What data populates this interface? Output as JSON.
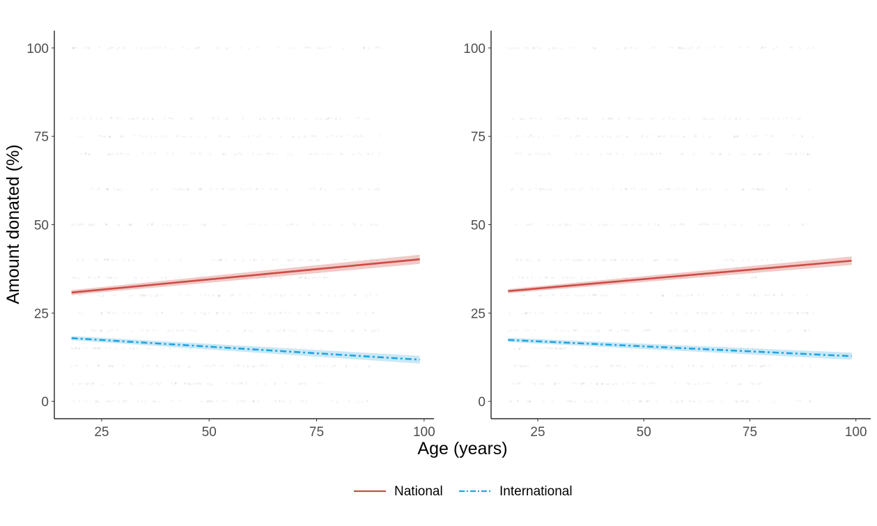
{
  "chart_data": [
    {
      "type": "line",
      "xlabel": "Age (years)",
      "ylabel": "Amount donated (%)",
      "xlim": [
        14,
        102.3
      ],
      "ylim": [
        -4.9,
        104.9
      ],
      "x_ticks": [
        "25",
        "50",
        "75",
        "100"
      ],
      "y_ticks": [
        "0",
        "25",
        "50",
        "75",
        "100"
      ],
      "grid": false,
      "series": [
        {
          "name": "National",
          "color": "#cc4c44",
          "band_color": "#e8a7a3",
          "linetype": "solid",
          "x": [
            18,
            99
          ],
          "y": [
            30.8,
            40.2
          ],
          "ci_halfwidth": [
            0.7,
            1.3
          ]
        },
        {
          "name": "International",
          "color": "#1ea5e0",
          "band_color": "#a6d9f2",
          "linetype": "dashdot",
          "x": [
            18,
            99
          ],
          "y": [
            17.9,
            11.8
          ],
          "ci_halfwidth": [
            0.6,
            1.1
          ]
        }
      ],
      "raw_point_levels": [
        0,
        5,
        10,
        15,
        20,
        25,
        30,
        35,
        40,
        50,
        60,
        70,
        75,
        80,
        100
      ]
    },
    {
      "type": "line",
      "xlabel": "Age (years)",
      "ylabel": "",
      "xlim": [
        14,
        103.5
      ],
      "ylim": [
        -4.9,
        104.9
      ],
      "x_ticks": [
        "25",
        "50",
        "75",
        "100"
      ],
      "y_ticks": [
        "0",
        "25",
        "50",
        "75",
        "100"
      ],
      "grid": false,
      "series": [
        {
          "name": "National",
          "color": "#cc4c44",
          "band_color": "#e8a7a3",
          "linetype": "solid",
          "x": [
            18,
            99
          ],
          "y": [
            31.2,
            39.8
          ],
          "ci_halfwidth": [
            0.6,
            1.2
          ]
        },
        {
          "name": "International",
          "color": "#1ea5e0",
          "band_color": "#a6d9f2",
          "linetype": "dashdot",
          "x": [
            18,
            99
          ],
          "y": [
            17.4,
            12.8
          ],
          "ci_halfwidth": [
            0.6,
            1.0
          ]
        }
      ],
      "raw_point_levels": [
        0,
        5,
        10,
        15,
        20,
        25,
        30,
        35,
        40,
        50,
        60,
        70,
        75,
        80,
        100
      ]
    }
  ],
  "legend": {
    "position": "bottom",
    "items": [
      {
        "label": "National",
        "color": "#cc4c44",
        "linetype": "solid"
      },
      {
        "label": "International",
        "color": "#1ea5e0",
        "linetype": "dashdot"
      }
    ]
  }
}
